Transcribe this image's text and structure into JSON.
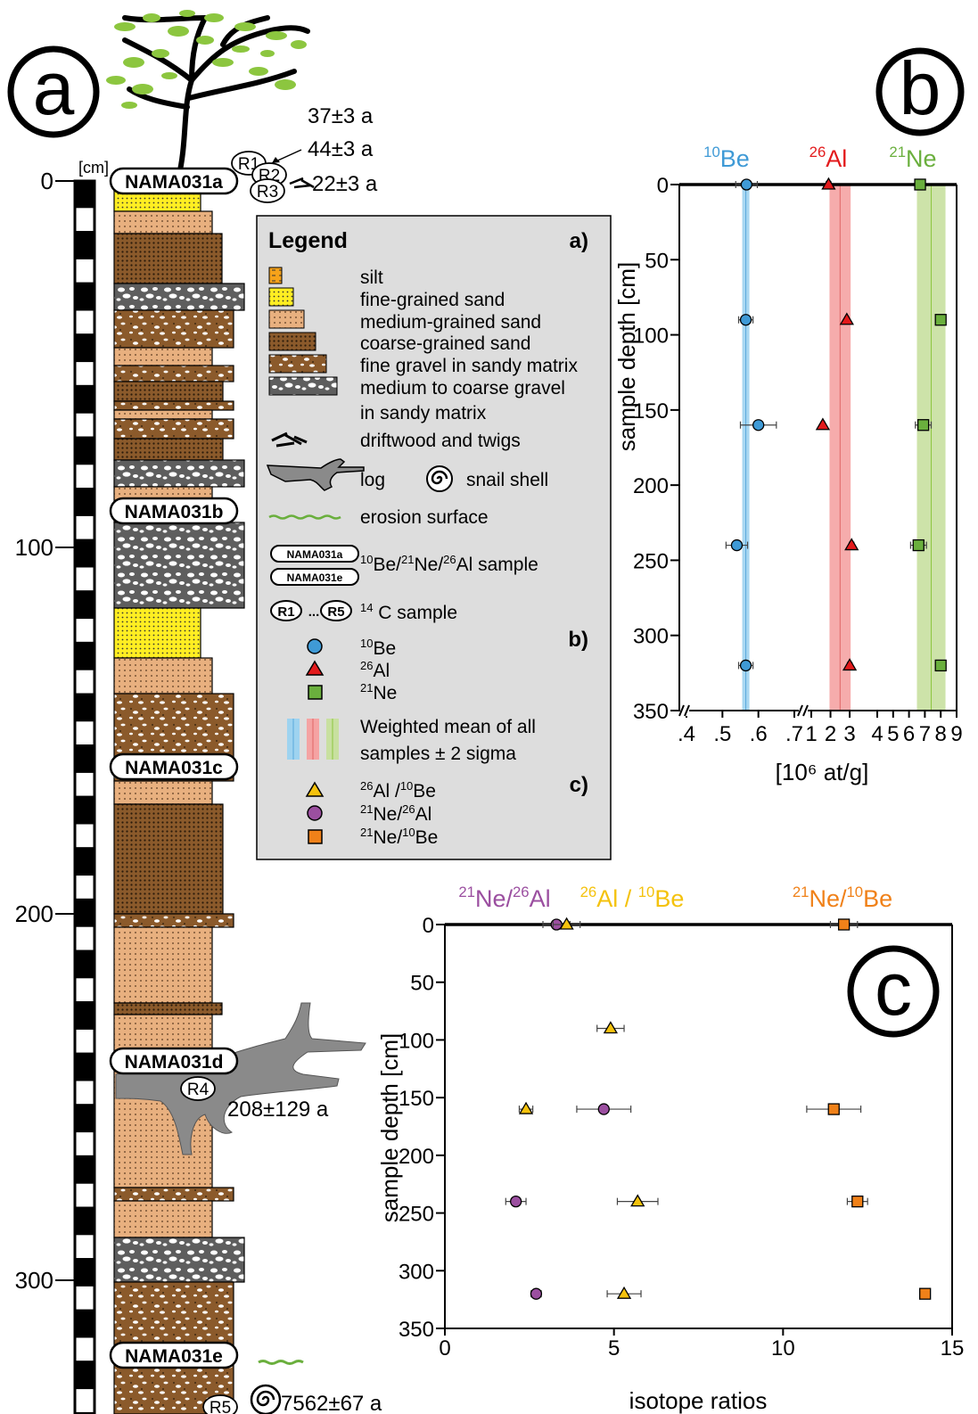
{
  "panels": {
    "a": "a",
    "b": "b",
    "c": "c"
  },
  "column": {
    "unit_label": "[cm]",
    "depth_ticks": [
      0,
      100,
      200,
      300
    ],
    "sample_labels": [
      "NAMA031a",
      "NAMA031b",
      "NAMA031c",
      "NAMA031d",
      "NAMA031e"
    ],
    "radiocarbon_labels": [
      "R1",
      "R2",
      "R3",
      "R4",
      "R5"
    ],
    "ages": [
      "37±3 a",
      "44±3 a",
      "22±3 a",
      "208±129 a",
      "7562±67 a"
    ]
  },
  "legend": {
    "title": "Legend",
    "section_a": "a)",
    "section_b": "b)",
    "section_c": "c)",
    "items": [
      "silt",
      "fine-grained sand",
      "medium-grained sand",
      "coarse-grained sand",
      "fine gravel in sandy matrix",
      "medium to coarse gravel",
      "in sandy matrix",
      "driftwood and twigs",
      "log",
      "snail shell",
      "erosion surface"
    ],
    "sample_note": "Be/ Ne/ Al sample",
    "sample_range_top": "NAMA031a",
    "sample_range_dots": "...",
    "sample_range_bottom": "NAMA031e",
    "c14_note": "C sample",
    "c14_range_start": "R1",
    "c14_range_dots": "...",
    "c14_range_end": "R5",
    "b_items": [
      "Be",
      "Al",
      "Ne"
    ],
    "b_mass": [
      "10",
      "26",
      "21"
    ],
    "mean_line1": "Weighted mean of all",
    "mean_line2": "samples ± 2 sigma",
    "c_items": [
      "Al /",
      "Ne/",
      "Ne/"
    ],
    "c_items_tail": [
      "Be",
      "Al",
      "Be"
    ],
    "c_mass_a": [
      "26",
      "21",
      "21"
    ],
    "c_mass_b": [
      "10",
      "26",
      "10"
    ]
  },
  "colors": {
    "be": "#3f9ad6",
    "al": "#e31a1c",
    "ne": "#6aaf3d",
    "al_be": "#f4c20d",
    "ne_al": "#9b4fa0",
    "ne_be": "#f08119"
  },
  "chart_data": [
    {
      "type": "scatter",
      "panel": "b",
      "xlabel": "[10⁶ at/g]",
      "ylabel": "sample depth [cm]",
      "depth": [
        0,
        90,
        160,
        240,
        320
      ],
      "ylim": [
        0,
        350
      ],
      "yticks": [
        0,
        50,
        100,
        150,
        200,
        250,
        300,
        350
      ],
      "segments": [
        {
          "name": "Be",
          "mass": "10",
          "xticks": [
            ".4",
            ".5",
            ".6",
            ".7"
          ],
          "xlim": [
            0.4,
            0.7
          ],
          "values": [
            0.567,
            0.565,
            0.6,
            0.54,
            0.565
          ],
          "err": [
            0.03,
            0.02,
            0.05,
            0.03,
            0.02
          ],
          "mean": 0.565,
          "band": [
            0.555,
            0.575
          ]
        },
        {
          "name": "Al",
          "mass": "26",
          "xticks": [
            "1",
            "2",
            "3"
          ],
          "xlim": [
            1,
            3.6
          ],
          "values": [
            1.9,
            2.85,
            1.6,
            3.1,
            3.0
          ],
          "err": [
            0.12,
            0.1,
            0.1,
            0.12,
            0.12
          ],
          "mean": 2.5,
          "band": [
            1.95,
            3.05
          ]
        },
        {
          "name": "Ne",
          "mass": "21",
          "xticks": [
            "4",
            "5",
            "6",
            "7",
            "8",
            "9"
          ],
          "xlim": [
            4,
            9
          ],
          "values": [
            6.7,
            8.0,
            6.9,
            6.6,
            8.0
          ],
          "err": [
            0.3,
            0.0,
            0.5,
            0.5,
            0.25
          ],
          "mean": 7.4,
          "band": [
            6.5,
            8.3
          ]
        }
      ]
    },
    {
      "type": "scatter",
      "panel": "c",
      "xlabel": "isotope ratios",
      "ylabel": "sample depth [cm]",
      "xlim": [
        0,
        15
      ],
      "xticks": [
        0,
        5,
        10,
        15
      ],
      "ylim": [
        0,
        350
      ],
      "yticks": [
        0,
        50,
        100,
        150,
        200,
        250,
        300,
        350
      ],
      "series": [
        {
          "name": "Ne/Al",
          "num": "21",
          "den": "26",
          "points": [
            [
              3.3,
              0
            ],
            [
              4.7,
              160
            ],
            [
              2.1,
              240
            ],
            [
              2.7,
              320
            ]
          ],
          "err": [
            0.4,
            0.8,
            0.3,
            0.15
          ]
        },
        {
          "name": "Al/Be",
          "num": "26",
          "den": "10",
          "points": [
            [
              3.6,
              0
            ],
            [
              4.9,
              90
            ],
            [
              2.4,
              160
            ],
            [
              5.7,
              240
            ],
            [
              5.3,
              320
            ]
          ],
          "err": [
            0.4,
            0.4,
            0.2,
            0.6,
            0.5
          ]
        },
        {
          "name": "Ne/Be",
          "num": "21",
          "den": "10",
          "points": [
            [
              11.8,
              0
            ],
            [
              11.5,
              160
            ],
            [
              12.2,
              240
            ],
            [
              14.2,
              320
            ]
          ],
          "err": [
            0.4,
            0.8,
            0.3,
            0.15
          ]
        }
      ]
    }
  ]
}
